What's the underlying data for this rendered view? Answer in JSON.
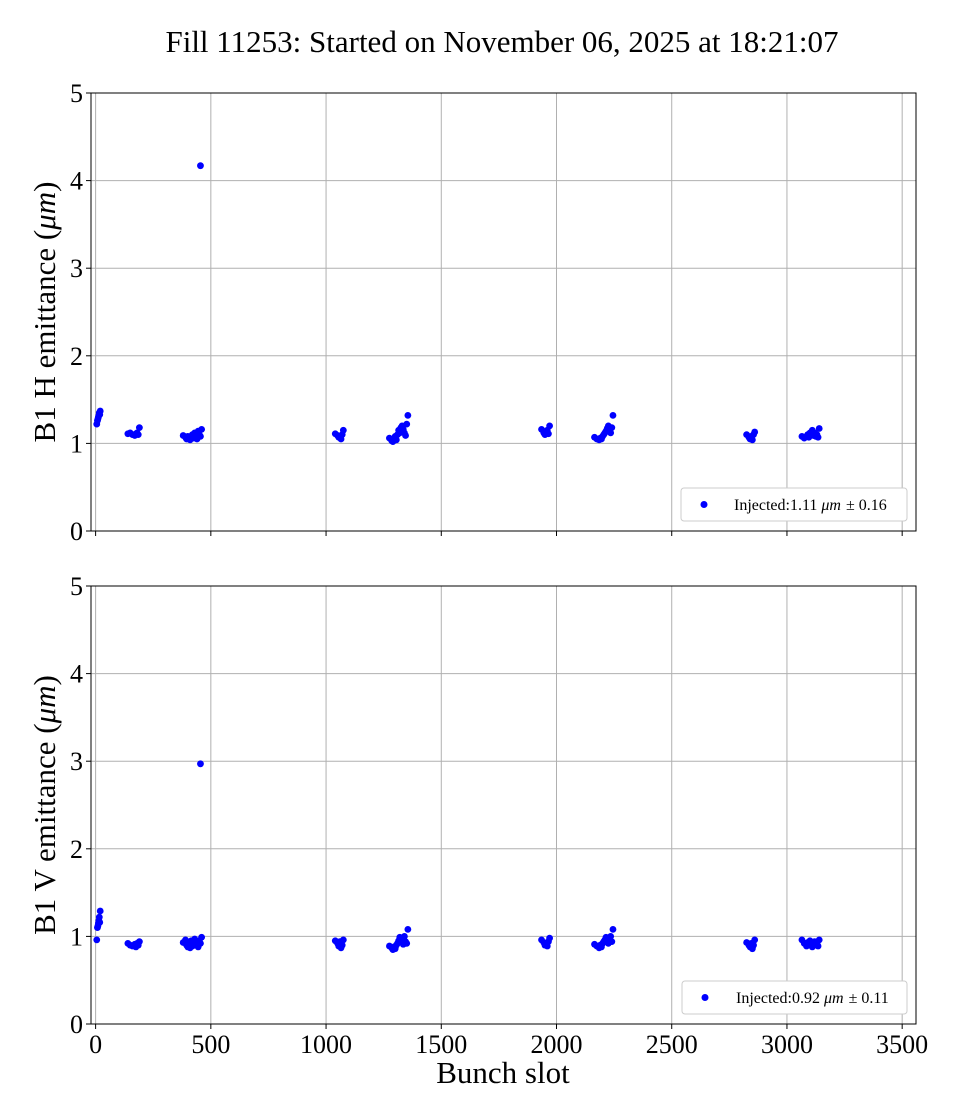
{
  "title": "Fill 11253: Started on November 06, 2025 at 18:21:07",
  "xlabel": "Bunch slot",
  "chart_data": [
    {
      "type": "scatter",
      "ylabel_main": "B1 H emittance (",
      "ylabel_unit": "μm",
      "ylabel_close": ")",
      "xlim": [
        -20,
        3560
      ],
      "ylim": [
        0,
        5
      ],
      "xticks": [
        0,
        500,
        1000,
        1500,
        2000,
        2500,
        3000,
        3500
      ],
      "yticks": [
        0,
        1,
        2,
        3,
        4,
        5
      ],
      "show_xtick_labels": false,
      "grid": true,
      "color": "#0000ff",
      "legend": {
        "placement": "lower-right",
        "prefix": "Injected:",
        "value": "1.11",
        "unit": "μm",
        "pm": "± 0.16"
      },
      "series": [
        {
          "x": [
            5,
            8,
            10,
            12,
            14,
            16,
            18,
            20,
            140,
            150,
            160,
            170,
            175,
            180,
            185,
            190,
            380,
            390,
            395,
            400,
            405,
            410,
            415,
            420,
            425,
            430,
            435,
            440,
            445,
            450,
            455,
            460,
            1040,
            1050,
            1055,
            1060,
            1065,
            1070,
            1075,
            1275,
            1285,
            1290,
            1295,
            1300,
            1305,
            1310,
            1315,
            1320,
            1325,
            1330,
            1335,
            1340,
            1345,
            1350,
            1355,
            1935,
            1945,
            1950,
            1955,
            1960,
            1965,
            1970,
            2165,
            2175,
            2185,
            2190,
            2195,
            2200,
            2205,
            2210,
            2215,
            2220,
            2225,
            2230,
            2235,
            2240,
            2245,
            2825,
            2835,
            2840,
            2845,
            2850,
            2855,
            2860,
            3065,
            3075,
            3085,
            3090,
            3095,
            3100,
            3110,
            3115,
            3120,
            3125,
            3130,
            3135,
            3140,
            455
          ],
          "y": [
            1.22,
            1.26,
            1.28,
            1.3,
            1.32,
            1.35,
            1.33,
            1.37,
            1.11,
            1.12,
            1.1,
            1.09,
            1.11,
            1.12,
            1.1,
            1.18,
            1.09,
            1.07,
            1.05,
            1.08,
            1.06,
            1.04,
            1.07,
            1.1,
            1.06,
            1.12,
            1.08,
            1.05,
            1.14,
            1.1,
            1.08,
            1.16,
            1.11,
            1.09,
            1.07,
            1.08,
            1.05,
            1.1,
            1.15,
            1.06,
            1.03,
            1.02,
            1.05,
            1.08,
            1.04,
            1.1,
            1.15,
            1.12,
            1.18,
            1.2,
            1.16,
            1.12,
            1.09,
            1.22,
            1.32,
            1.16,
            1.12,
            1.1,
            1.13,
            1.15,
            1.11,
            1.2,
            1.07,
            1.05,
            1.04,
            1.06,
            1.05,
            1.08,
            1.1,
            1.12,
            1.14,
            1.17,
            1.2,
            1.16,
            1.12,
            1.18,
            1.32,
            1.1,
            1.07,
            1.05,
            1.08,
            1.04,
            1.1,
            1.13,
            1.08,
            1.06,
            1.08,
            1.1,
            1.07,
            1.12,
            1.15,
            1.09,
            1.12,
            1.08,
            1.1,
            1.07,
            1.17,
            4.17
          ]
        }
      ]
    },
    {
      "type": "scatter",
      "ylabel_main": "B1 V emittance (",
      "ylabel_unit": "μm",
      "ylabel_close": ")",
      "xlim": [
        -20,
        3560
      ],
      "ylim": [
        0,
        5
      ],
      "xticks": [
        0,
        500,
        1000,
        1500,
        2000,
        2500,
        3000,
        3500
      ],
      "yticks": [
        0,
        1,
        2,
        3,
        4,
        5
      ],
      "show_xtick_labels": true,
      "grid": true,
      "color": "#0000ff",
      "legend": {
        "placement": "lower-right",
        "prefix": "Injected:",
        "value": "0.92",
        "unit": "μm",
        "pm": "± 0.11"
      },
      "series": [
        {
          "x": [
            5,
            8,
            10,
            12,
            14,
            16,
            18,
            20,
            140,
            150,
            160,
            170,
            175,
            180,
            185,
            190,
            380,
            390,
            395,
            400,
            405,
            410,
            415,
            420,
            425,
            430,
            435,
            440,
            445,
            450,
            455,
            460,
            1040,
            1050,
            1055,
            1060,
            1065,
            1070,
            1075,
            1275,
            1285,
            1290,
            1295,
            1300,
            1305,
            1310,
            1315,
            1320,
            1325,
            1330,
            1335,
            1340,
            1345,
            1350,
            1355,
            1935,
            1945,
            1950,
            1955,
            1960,
            1965,
            1970,
            2165,
            2175,
            2185,
            2190,
            2195,
            2200,
            2205,
            2210,
            2215,
            2220,
            2225,
            2230,
            2235,
            2240,
            2245,
            2825,
            2835,
            2840,
            2845,
            2850,
            2855,
            2860,
            3065,
            3075,
            3085,
            3090,
            3095,
            3100,
            3110,
            3115,
            3120,
            3125,
            3130,
            3135,
            3140,
            455
          ],
          "y": [
            0.96,
            1.1,
            1.12,
            1.15,
            1.18,
            1.22,
            1.16,
            1.29,
            0.92,
            0.9,
            0.89,
            0.91,
            0.88,
            0.92,
            0.9,
            0.94,
            0.93,
            0.96,
            0.9,
            0.88,
            0.92,
            0.87,
            0.95,
            0.89,
            0.91,
            0.97,
            0.9,
            0.93,
            0.88,
            0.95,
            0.92,
            0.99,
            0.95,
            0.92,
            0.89,
            0.94,
            0.87,
            0.9,
            0.96,
            0.89,
            0.87,
            0.85,
            0.88,
            0.86,
            0.9,
            0.92,
            0.95,
            0.99,
            0.96,
            0.93,
            0.91,
            1.0,
            0.94,
            0.92,
            1.08,
            0.96,
            0.93,
            0.9,
            0.92,
            0.89,
            0.94,
            0.98,
            0.91,
            0.89,
            0.87,
            0.9,
            0.88,
            0.92,
            0.94,
            0.96,
            0.99,
            0.95,
            0.92,
            0.97,
            1.0,
            0.94,
            1.08,
            0.93,
            0.9,
            0.88,
            0.92,
            0.86,
            0.9,
            0.96,
            0.96,
            0.92,
            0.89,
            0.93,
            0.9,
            0.95,
            0.88,
            0.91,
            0.94,
            0.9,
            0.92,
            0.89,
            0.96,
            2.97
          ]
        }
      ]
    }
  ]
}
